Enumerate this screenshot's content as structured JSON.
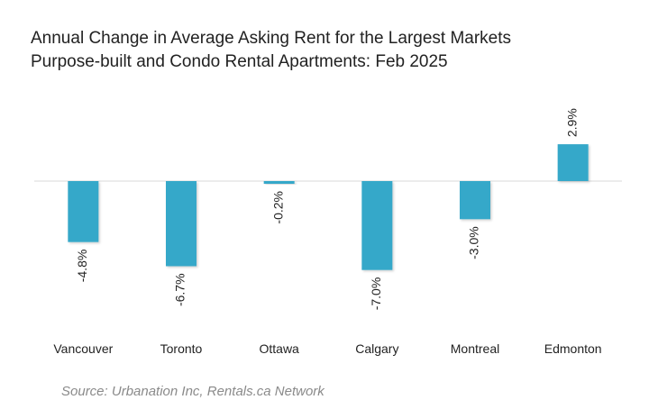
{
  "chart_data": {
    "type": "bar",
    "title": "Annual Change in Average Asking Rent for the Largest Markets",
    "subtitle": "Purpose-built and Condo Rental Apartments: Feb 2025",
    "categories": [
      "Vancouver",
      "Toronto",
      "Ottawa",
      "Calgary",
      "Montreal",
      "Edmonton"
    ],
    "values": [
      -4.8,
      -6.7,
      -0.2,
      -7.0,
      -3.0,
      2.9
    ],
    "data_labels": [
      "-4.8%",
      "-6.7%",
      "-0.2%",
      "-7.0%",
      "-3.0%",
      "2.9%"
    ],
    "xlabel": "",
    "ylabel": "",
    "ylim": [
      -7.0,
      2.9
    ],
    "grid": false,
    "legend": "none",
    "bar_color": "#34a8c9",
    "baseline_color": "#d9d9d9"
  },
  "source": "Source: Urbanation Inc, Rentals.ca Network"
}
